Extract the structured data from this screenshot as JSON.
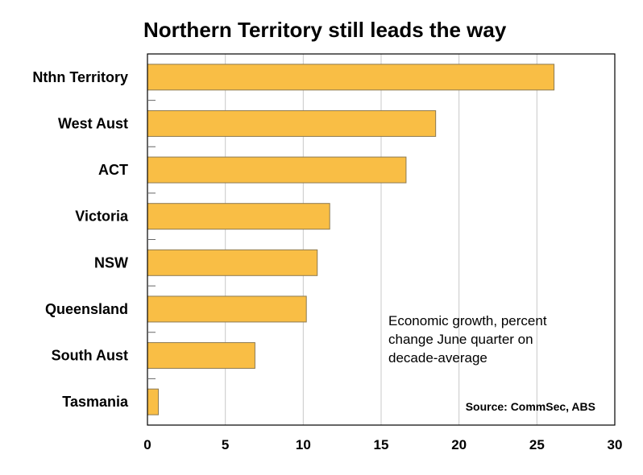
{
  "chart_data": {
    "type": "bar",
    "orientation": "horizontal",
    "title": "Northern Territory still leads the way",
    "categories": [
      "Nthn Territory",
      "West Aust",
      "ACT",
      "Victoria",
      "NSW",
      "Queensland",
      "South Aust",
      "Tasmania"
    ],
    "values": [
      26.1,
      18.5,
      16.6,
      11.7,
      10.9,
      10.2,
      6.9,
      0.7
    ],
    "xlim": [
      0,
      30
    ],
    "xticks": [
      0,
      5,
      10,
      15,
      20,
      25,
      30
    ],
    "xlabel": "",
    "ylabel": "",
    "grid": "vertical",
    "bar_color": "#F9BE45",
    "bar_stroke": "#8C7A52",
    "annotation_lines": [
      "Economic growth, percent",
      "change June quarter on",
      "decade-average"
    ],
    "source": "Source: CommSec, ABS"
  }
}
